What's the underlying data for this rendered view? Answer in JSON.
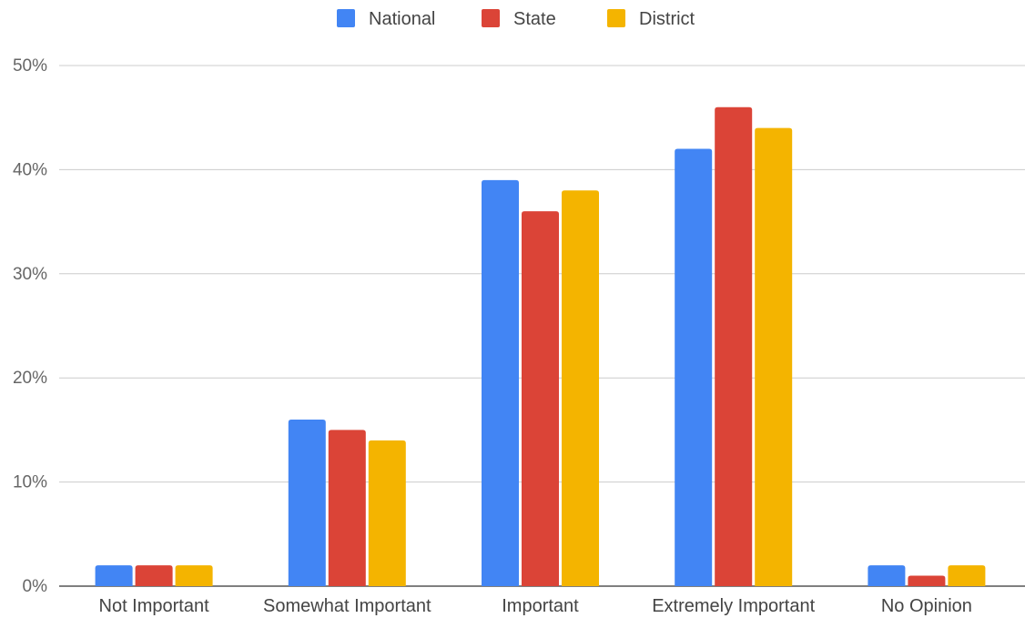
{
  "chart_data": {
    "type": "bar",
    "title": "",
    "xlabel": "",
    "ylabel": "",
    "categories": [
      "Not Important",
      "Somewhat Important",
      "Important",
      "Extremely Important",
      "No Opinion"
    ],
    "series": [
      {
        "name": "National",
        "color": "#4285f4",
        "values": [
          2,
          16,
          39,
          42,
          2
        ]
      },
      {
        "name": "State",
        "color": "#db4437",
        "values": [
          2,
          15,
          36,
          46,
          1
        ]
      },
      {
        "name": "District",
        "color": "#f4b400",
        "values": [
          2,
          14,
          38,
          44,
          2
        ]
      }
    ],
    "ylim": [
      0,
      50
    ],
    "yticks": [
      0,
      10,
      20,
      30,
      40,
      50
    ],
    "ytick_labels": [
      "0%",
      "10%",
      "20%",
      "30%",
      "40%",
      "50%"
    ],
    "grid": true,
    "legend_position": "top-center"
  }
}
